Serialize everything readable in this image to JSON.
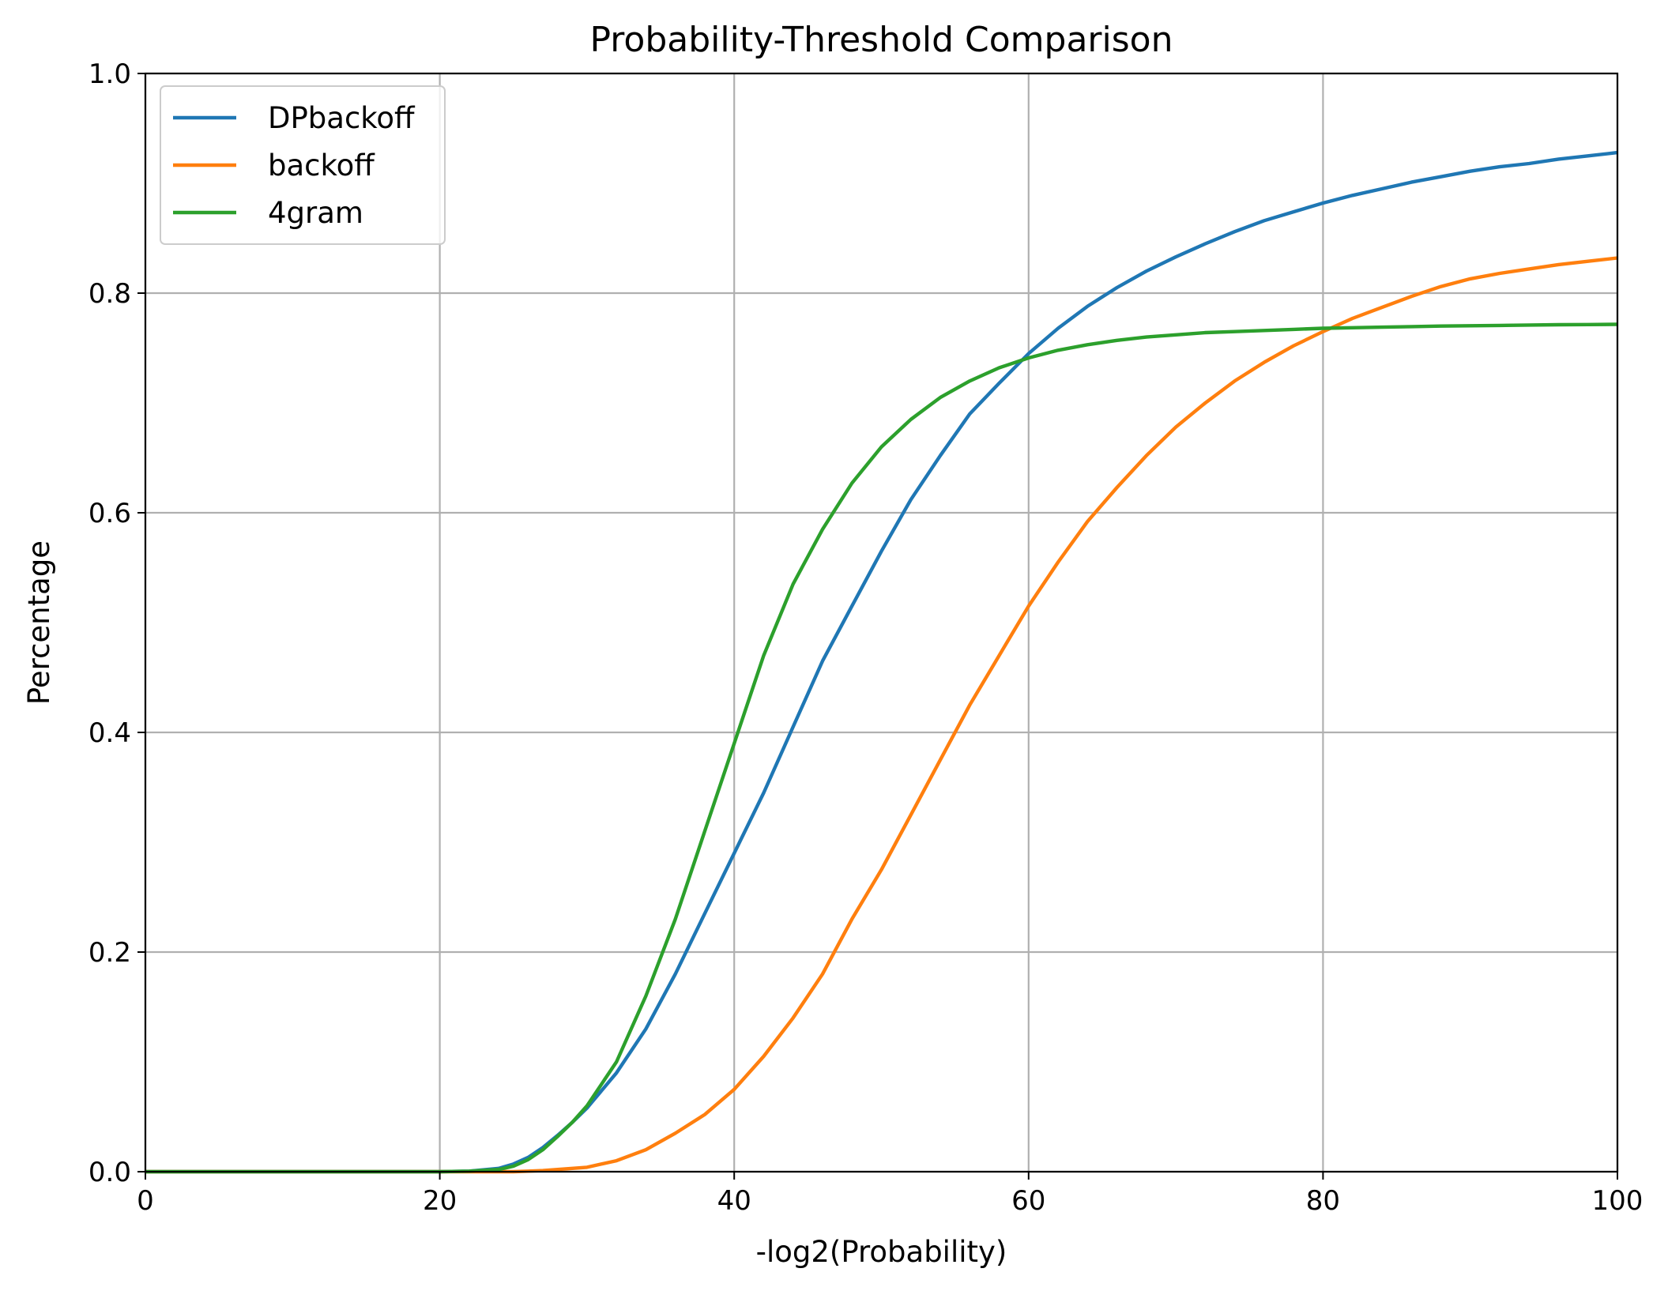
{
  "chart_data": {
    "type": "line",
    "title": "Probability-Threshold Comparison",
    "xlabel": "-log2(Probability)",
    "ylabel": "Percentage",
    "xlim": [
      0,
      100
    ],
    "ylim": [
      0,
      1.0
    ],
    "x_ticks": [
      0,
      20,
      40,
      60,
      80,
      100
    ],
    "x_tick_labels": [
      "0",
      "20",
      "40",
      "60",
      "80",
      "100"
    ],
    "y_ticks": [
      0.0,
      0.2,
      0.4,
      0.6,
      0.8,
      1.0
    ],
    "y_tick_labels": [
      "0.0",
      "0.2",
      "0.4",
      "0.6",
      "0.8",
      "1.0"
    ],
    "grid": true,
    "legend_position": "top-left",
    "x": [
      0,
      10,
      20,
      22,
      24,
      25,
      26,
      27,
      28,
      29,
      30,
      32,
      34,
      36,
      38,
      40,
      42,
      44,
      46,
      48,
      50,
      52,
      54,
      56,
      58,
      60,
      62,
      64,
      66,
      68,
      70,
      72,
      74,
      76,
      78,
      80,
      82,
      84,
      86,
      88,
      90,
      92,
      94,
      96,
      98,
      100
    ],
    "series": [
      {
        "name": "DPbackoff",
        "color": "#1f77b4",
        "values": [
          0,
          0,
          0,
          0.0005,
          0.003,
          0.007,
          0.013,
          0.022,
          0.033,
          0.045,
          0.058,
          0.09,
          0.13,
          0.18,
          0.235,
          0.29,
          0.345,
          0.405,
          0.465,
          0.515,
          0.565,
          0.612,
          0.652,
          0.69,
          0.718,
          0.745,
          0.768,
          0.788,
          0.805,
          0.82,
          0.833,
          0.845,
          0.856,
          0.866,
          0.874,
          0.882,
          0.889,
          0.895,
          0.901,
          0.906,
          0.911,
          0.915,
          0.918,
          0.922,
          0.925,
          0.928
        ]
      },
      {
        "name": "backoff",
        "color": "#ff7f0e",
        "values": [
          0,
          0,
          0,
          0,
          0,
          0,
          0.0005,
          0.001,
          0.002,
          0.003,
          0.004,
          0.01,
          0.02,
          0.035,
          0.052,
          0.075,
          0.105,
          0.14,
          0.18,
          0.23,
          0.275,
          0.325,
          0.375,
          0.425,
          0.47,
          0.515,
          0.555,
          0.592,
          0.623,
          0.652,
          0.678,
          0.7,
          0.72,
          0.737,
          0.752,
          0.765,
          0.777,
          0.787,
          0.797,
          0.806,
          0.813,
          0.818,
          0.822,
          0.826,
          0.829,
          0.832
        ]
      },
      {
        "name": "4gram",
        "color": "#2ca02c",
        "values": [
          0,
          0,
          0,
          0.0005,
          0.002,
          0.005,
          0.011,
          0.02,
          0.032,
          0.045,
          0.06,
          0.1,
          0.16,
          0.23,
          0.31,
          0.39,
          0.47,
          0.535,
          0.585,
          0.627,
          0.66,
          0.685,
          0.705,
          0.72,
          0.732,
          0.741,
          0.748,
          0.753,
          0.757,
          0.76,
          0.762,
          0.764,
          0.765,
          0.766,
          0.767,
          0.768,
          0.7685,
          0.769,
          0.7695,
          0.77,
          0.7703,
          0.7706,
          0.7709,
          0.7712,
          0.7714,
          0.7716
        ]
      }
    ]
  }
}
